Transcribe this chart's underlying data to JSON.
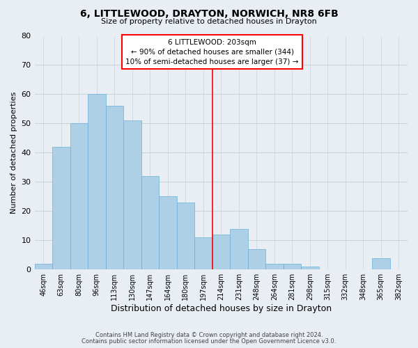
{
  "title": "6, LITTLEWOOD, DRAYTON, NORWICH, NR8 6FB",
  "subtitle": "Size of property relative to detached houses in Drayton",
  "xlabel": "Distribution of detached houses by size in Drayton",
  "ylabel": "Number of detached properties",
  "bar_labels": [
    "46sqm",
    "63sqm",
    "80sqm",
    "96sqm",
    "113sqm",
    "130sqm",
    "147sqm",
    "164sqm",
    "180sqm",
    "197sqm",
    "214sqm",
    "231sqm",
    "248sqm",
    "264sqm",
    "281sqm",
    "298sqm",
    "315sqm",
    "332sqm",
    "348sqm",
    "365sqm",
    "382sqm"
  ],
  "bar_values": [
    2,
    42,
    50,
    60,
    56,
    51,
    32,
    25,
    23,
    11,
    12,
    14,
    7,
    2,
    2,
    1,
    0,
    0,
    0,
    4,
    0
  ],
  "bar_color": "#aed0e6",
  "bar_edge_color": "#6aaed6",
  "ylim": [
    0,
    80
  ],
  "yticks": [
    0,
    10,
    20,
    30,
    40,
    50,
    60,
    70,
    80
  ],
  "vline_x": 9.5,
  "annotation_text": "6 LITTLEWOOD: 203sqm\n← 90% of detached houses are smaller (344)\n10% of semi-detached houses are larger (37) →",
  "footer_line1": "Contains HM Land Registry data © Crown copyright and database right 2024.",
  "footer_line2": "Contains public sector information licensed under the Open Government Licence v3.0.",
  "bg_color": "#e8eef4",
  "plot_bg_color": "#e8eef4",
  "grid_color": "#c8d4de"
}
